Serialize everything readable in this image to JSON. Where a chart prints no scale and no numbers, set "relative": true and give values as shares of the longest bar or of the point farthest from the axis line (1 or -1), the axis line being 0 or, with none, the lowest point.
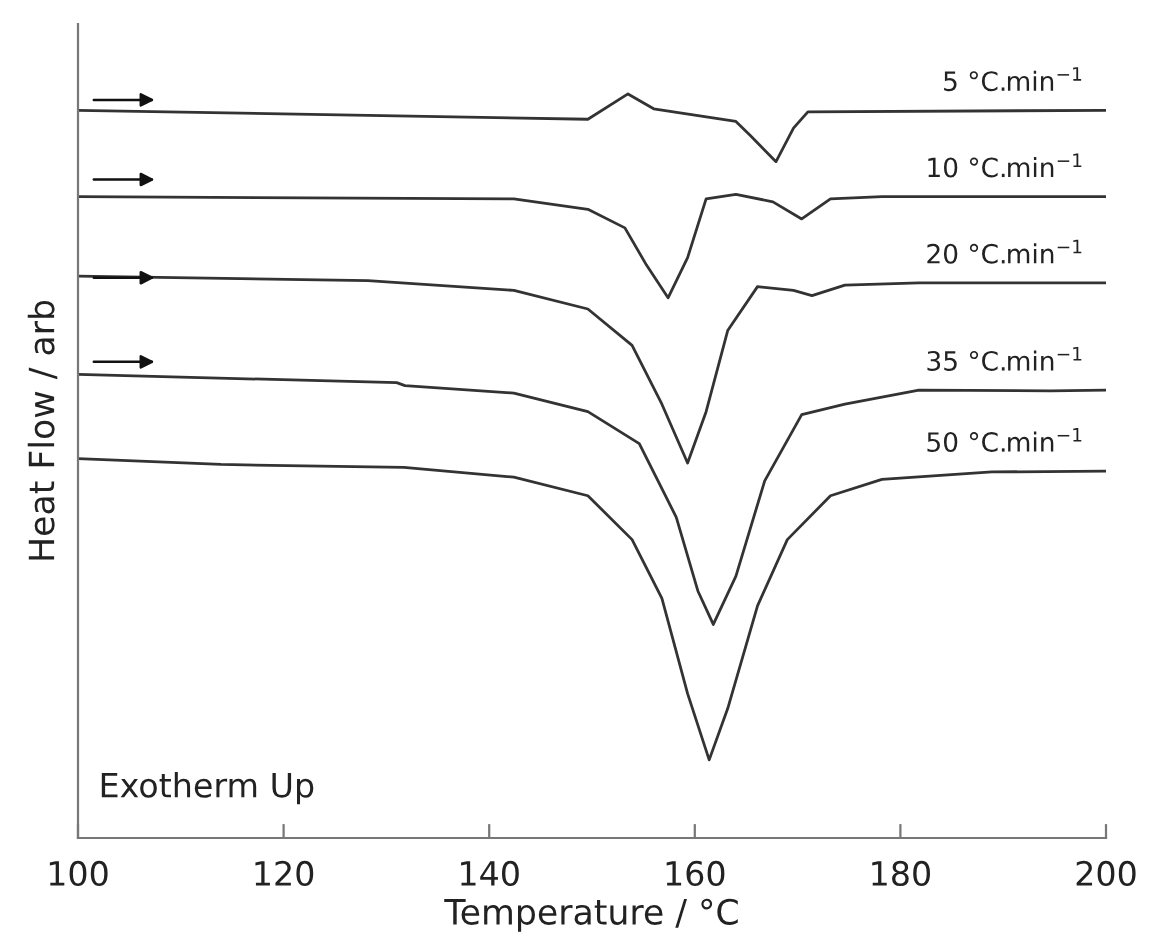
{
  "chart_data": {
    "type": "line",
    "relative": true,
    "xlabel": "Temperature / °C",
    "ylabel": "Heat Flow / arb",
    "annotations": [
      "Exotherm Up"
    ],
    "xlim": [
      100,
      200
    ],
    "xticks": [
      100,
      120,
      140,
      160,
      180,
      200
    ],
    "grid": false,
    "legend": false,
    "marker": "none",
    "line_style": "solid",
    "series": [
      {
        "name": "5 °C.min$^{−1}$",
        "color": "#333333",
        "x": [
          100,
          149.6,
          153.5,
          156,
          164,
          165.4,
          167.9,
          169.6,
          171,
          200
        ],
        "values": [
          0.978,
          0.966,
          1.0,
          0.98,
          0.963,
          0.944,
          0.909,
          0.954,
          0.976,
          0.978
        ]
      },
      {
        "name": "10 °C.min$^{−1}$",
        "color": "#333333",
        "x": [
          100,
          142.4,
          149.6,
          153.2,
          155.3,
          157.4,
          159.3,
          161.1,
          164,
          167.6,
          170.4,
          173.2,
          178.2,
          200
        ],
        "values": [
          0.862,
          0.859,
          0.845,
          0.82,
          0.77,
          0.726,
          0.78,
          0.859,
          0.865,
          0.855,
          0.832,
          0.859,
          0.862,
          0.862
        ]
      },
      {
        "name": "20 °C.min$^{−1}$",
        "color": "#333333",
        "x": [
          100,
          128.2,
          142.4,
          149.6,
          153.9,
          156.8,
          159.3,
          161.1,
          163.2,
          166.1,
          169.6,
          171.4,
          174.6,
          181.8,
          200
        ],
        "values": [
          0.755,
          0.749,
          0.736,
          0.711,
          0.662,
          0.583,
          0.504,
          0.573,
          0.682,
          0.741,
          0.736,
          0.729,
          0.743,
          0.746,
          0.746
        ]
      },
      {
        "name": "35 °C.min$^{−1}$",
        "color": "#333333",
        "x": [
          100,
          131,
          131.8,
          142.4,
          149.6,
          154.6,
          158.2,
          160.3,
          161.8,
          164,
          166.8,
          170.4,
          174.6,
          181.8,
          194.6,
          200
        ],
        "values": [
          0.623,
          0.612,
          0.608,
          0.598,
          0.573,
          0.53,
          0.431,
          0.332,
          0.287,
          0.352,
          0.48,
          0.569,
          0.583,
          0.602,
          0.601,
          0.602
        ]
      },
      {
        "name": "50 °C.min$^{−1}$",
        "color": "#333333",
        "x": [
          100,
          113.9,
          131.7,
          142.4,
          149.6,
          153.9,
          156.8,
          159.3,
          161.4,
          163.2,
          166.1,
          169,
          173.2,
          178.2,
          188.9,
          200
        ],
        "values": [
          0.51,
          0.502,
          0.498,
          0.485,
          0.46,
          0.401,
          0.322,
          0.194,
          0.105,
          0.174,
          0.312,
          0.401,
          0.46,
          0.482,
          0.492,
          0.493
        ]
      }
    ]
  }
}
